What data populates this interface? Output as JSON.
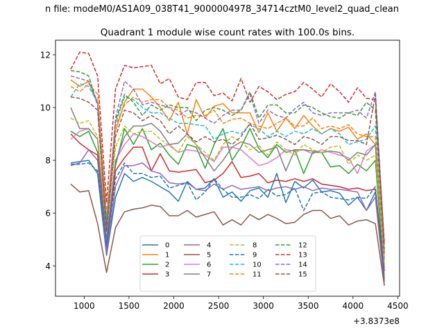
{
  "suptitle": "n file: modeM0/AS1A09_038T41_9000004978_34714cztM0_level2_quad_clean",
  "chart_data": {
    "type": "line",
    "title": "Quadrant 1 module wise count rates with 100.0s bins.",
    "xlabel": "",
    "ylabel": "",
    "offset_text": "+3.8373e8",
    "xlim": [
      680,
      4520
    ],
    "ylim": [
      2.85,
      12.55
    ],
    "xticks": [
      1000,
      1500,
      2000,
      2500,
      3000,
      3500,
      4000,
      4500
    ],
    "xtick_labels": [
      "1000",
      "1500",
      "2000",
      "2500",
      "3000",
      "3500",
      "4000",
      "4500"
    ],
    "yticks": [
      4,
      6,
      8,
      10,
      12
    ],
    "ytick_labels": [
      "4",
      "6",
      "8",
      "10",
      "12"
    ],
    "grid": false,
    "legend_position": "bottom-center",
    "legend_columns": 4,
    "x": [
      850,
      950,
      1050,
      1150,
      1250,
      1350,
      1450,
      1550,
      1650,
      1750,
      1850,
      1950,
      2050,
      2150,
      2250,
      2350,
      2450,
      2550,
      2650,
      2750,
      2850,
      2950,
      3050,
      3150,
      3250,
      3350,
      3450,
      3550,
      3650,
      3750,
      3850,
      3950,
      4050,
      4150,
      4250,
      4350
    ],
    "series": [
      {
        "name": "0",
        "color": "#1f77b4",
        "dash": "solid",
        "values": [
          7.9,
          7.95,
          8.0,
          7.5,
          4.4,
          6.6,
          7.5,
          7.2,
          7.35,
          7.2,
          7.0,
          6.8,
          6.45,
          7.2,
          6.9,
          6.95,
          7.3,
          6.6,
          6.8,
          6.45,
          6.85,
          6.95,
          6.6,
          7.5,
          6.4,
          7.2,
          6.95,
          7.25,
          6.8,
          6.85,
          6.75,
          6.3,
          6.6,
          6.1,
          6.8,
          3.4
        ]
      },
      {
        "name": "1",
        "color": "#ff7f0e",
        "dash": "solid",
        "values": [
          11.05,
          10.8,
          11.0,
          10.2,
          5.6,
          9.1,
          10.2,
          10.7,
          10.7,
          10.4,
          10.0,
          9.5,
          10.2,
          9.0,
          10.3,
          9.6,
          10.05,
          10.15,
          9.8,
          9.8,
          9.8,
          9.05,
          9.8,
          9.1,
          9.6,
          9.2,
          9.7,
          9.3,
          9.0,
          9.2,
          9.1,
          9.25,
          8.8,
          9.0,
          8.6,
          4.2
        ]
      },
      {
        "name": "2",
        "color": "#2ca02c",
        "dash": "solid",
        "values": [
          9.1,
          8.9,
          9.1,
          8.3,
          4.9,
          7.8,
          9.2,
          8.6,
          9.2,
          8.4,
          8.65,
          8.2,
          7.85,
          8.6,
          8.5,
          7.7,
          8.6,
          9.2,
          8.0,
          8.5,
          9.2,
          8.45,
          8.1,
          8.6,
          8.3,
          8.4,
          7.5,
          8.3,
          8.3,
          7.75,
          7.8,
          7.5,
          7.85,
          7.6,
          8.0,
          3.5
        ]
      },
      {
        "name": "3",
        "color": "#d62728",
        "dash": "solid",
        "values": [
          9.0,
          8.65,
          8.4,
          8.2,
          4.7,
          7.6,
          8.1,
          8.5,
          8.5,
          7.6,
          8.25,
          7.6,
          7.55,
          7.6,
          7.65,
          7.15,
          7.25,
          7.5,
          7.95,
          7.35,
          7.4,
          7.5,
          7.15,
          7.25,
          7.2,
          7.3,
          7.2,
          7.3,
          7.1,
          7.05,
          7.0,
          6.9,
          6.95,
          6.85,
          6.9,
          3.8
        ]
      },
      {
        "name": "4",
        "color": "#9467bd",
        "dash": "solid",
        "values": [
          7.8,
          7.9,
          8.4,
          8.0,
          4.5,
          7.0,
          7.8,
          7.8,
          7.9,
          7.6,
          7.5,
          7.15,
          7.1,
          7.15,
          6.9,
          6.85,
          7.1,
          6.9,
          7.05,
          6.9,
          6.95,
          7.0,
          6.85,
          6.95,
          7.0,
          6.9,
          7.0,
          6.85,
          6.95,
          6.9,
          6.9,
          6.85,
          6.8,
          6.1,
          6.6,
          3.3
        ]
      },
      {
        "name": "5",
        "color": "#8c564b",
        "dash": "solid",
        "values": [
          7.1,
          6.8,
          6.85,
          5.6,
          3.75,
          5.45,
          6.05,
          6.15,
          6.2,
          6.3,
          6.25,
          5.9,
          5.9,
          6.1,
          5.85,
          5.95,
          6.05,
          5.55,
          5.75,
          5.55,
          5.95,
          5.75,
          5.95,
          5.8,
          5.6,
          5.65,
          5.95,
          6.1,
          6.1,
          5.8,
          5.9,
          5.55,
          5.7,
          5.75,
          5.6,
          3.25
        ]
      },
      {
        "name": "6",
        "color": "#e377c2",
        "dash": "solid",
        "values": [
          8.8,
          9.1,
          9.2,
          8.8,
          5.0,
          8.0,
          8.6,
          9.0,
          8.9,
          8.7,
          8.5,
          8.6,
          8.3,
          8.4,
          8.35,
          8.2,
          7.95,
          8.5,
          8.5,
          8.4,
          8.1,
          7.8,
          7.9,
          8.1,
          8.4,
          8.35,
          8.4,
          8.25,
          8.4,
          8.3,
          8.2,
          8.1,
          7.5,
          8.35,
          8.6,
          4.0
        ]
      },
      {
        "name": "7",
        "color": "#7f7f7f",
        "dash": "solid",
        "values": [
          10.0,
          9.2,
          9.2,
          8.8,
          4.95,
          7.95,
          8.9,
          9.3,
          9.3,
          9.4,
          9.1,
          8.6,
          8.65,
          9.0,
          8.6,
          8.1,
          7.6,
          8.0,
          8.5,
          8.7,
          8.6,
          8.3,
          8.4,
          8.5,
          7.6,
          8.4,
          8.4,
          8.35,
          8.3,
          8.35,
          8.3,
          8.0,
          8.3,
          8.2,
          8.6,
          3.9
        ]
      },
      {
        "name": "8",
        "color": "#bcbd22",
        "dash": "dashed",
        "values": [
          9.6,
          9.4,
          9.5,
          8.9,
          5.4,
          8.5,
          9.3,
          9.0,
          9.1,
          9.1,
          8.8,
          8.55,
          8.3,
          8.9,
          8.6,
          8.3,
          8.0,
          8.6,
          8.9,
          8.7,
          8.4,
          8.55,
          8.2,
          8.7,
          8.4,
          8.2,
          8.6,
          8.4,
          8.3,
          8.5,
          8.55,
          7.85,
          8.2,
          8.0,
          8.2,
          4.1
        ]
      },
      {
        "name": "9",
        "color": "#1f77b4",
        "dash": "dashed",
        "values": [
          7.85,
          7.85,
          7.9,
          7.6,
          4.8,
          7.3,
          7.9,
          7.5,
          7.5,
          7.35,
          7.4,
          6.95,
          7.05,
          7.15,
          6.5,
          6.8,
          7.3,
          6.9,
          6.6,
          6.6,
          6.7,
          6.55,
          6.9,
          6.65,
          6.7,
          6.95,
          6.1,
          6.75,
          6.8,
          6.6,
          6.55,
          6.5,
          6.6,
          6.55,
          7.0,
          3.6
        ]
      },
      {
        "name": "10",
        "color": "#17becf",
        "dash": "dashed",
        "values": [
          10.4,
          10.9,
          10.8,
          10.2,
          5.8,
          9.4,
          10.4,
          10.3,
          10.0,
          9.8,
          9.8,
          9.6,
          9.4,
          9.4,
          9.35,
          9.3,
          8.8,
          9.0,
          9.1,
          9.0,
          9.35,
          9.2,
          8.9,
          9.1,
          8.9,
          9.1,
          9.0,
          9.2,
          9.0,
          9.2,
          9.0,
          8.6,
          8.7,
          8.8,
          9.3,
          4.3
        ]
      },
      {
        "name": "11",
        "color": "#ff7f0e",
        "dash": "dashed",
        "values": [
          10.8,
          10.6,
          10.9,
          10.5,
          6.0,
          9.3,
          10.1,
          10.4,
          10.2,
          10.3,
          10.3,
          10.0,
          9.9,
          9.6,
          9.7,
          9.7,
          9.9,
          9.4,
          9.55,
          9.6,
          9.4,
          9.3,
          9.2,
          9.4,
          9.6,
          9.3,
          9.3,
          9.6,
          9.2,
          9.3,
          9.2,
          9.35,
          9.0,
          8.9,
          8.9,
          4.4
        ]
      },
      {
        "name": "12",
        "color": "#2ca02c",
        "dash": "dashed",
        "values": [
          11.4,
          11.35,
          11.2,
          10.1,
          5.5,
          9.5,
          10.5,
          10.2,
          9.7,
          10.1,
          9.9,
          10.1,
          10.0,
          10.0,
          9.5,
          9.9,
          10.0,
          9.9,
          9.7,
          9.9,
          10.6,
          9.6,
          10.1,
          10.1,
          9.8,
          9.8,
          10.1,
          10.0,
          9.8,
          9.65,
          9.6,
          9.8,
          9.7,
          10.2,
          9.9,
          4.6
        ]
      },
      {
        "name": "13",
        "color": "#d62728",
        "dash": "dashed",
        "values": [
          11.45,
          12.1,
          12.05,
          11.2,
          6.4,
          10.7,
          11.6,
          11.5,
          11.55,
          11.6,
          10.9,
          11.1,
          10.4,
          10.3,
          10.95,
          10.95,
          10.45,
          10.55,
          10.25,
          11.1,
          10.2,
          10.8,
          10.6,
          10.3,
          10.5,
          10.6,
          10.95,
          10.7,
          10.4,
          10.9,
          10.6,
          10.2,
          10.75,
          10.35,
          10.3,
          4.9
        ]
      },
      {
        "name": "14",
        "color": "#9467bd",
        "dash": "dashed",
        "values": [
          11.2,
          11.1,
          11.0,
          10.1,
          5.3,
          9.6,
          11.0,
          10.7,
          10.1,
          10.2,
          10.1,
          10.0,
          9.7,
          9.9,
          9.8,
          9.6,
          9.4,
          9.7,
          9.9,
          9.9,
          10.5,
          9.4,
          9.9,
          9.7,
          9.6,
          9.95,
          10.2,
          9.8,
          9.7,
          9.8,
          9.8,
          9.8,
          9.9,
          9.6,
          10.6,
          4.8
        ]
      },
      {
        "name": "15",
        "color": "#8c564b",
        "dash": "dashed",
        "values": [
          10.4,
          10.35,
          10.2,
          9.9,
          5.3,
          8.9,
          9.9,
          9.8,
          9.5,
          9.7,
          9.5,
          9.0,
          9.3,
          9.0,
          8.7,
          8.9,
          8.7,
          8.8,
          8.6,
          8.9,
          9.4,
          8.8,
          8.85,
          8.95,
          8.8,
          8.6,
          8.9,
          8.8,
          8.6,
          8.9,
          8.9,
          8.75,
          8.75,
          8.6,
          10.5,
          4.5
        ]
      }
    ]
  }
}
